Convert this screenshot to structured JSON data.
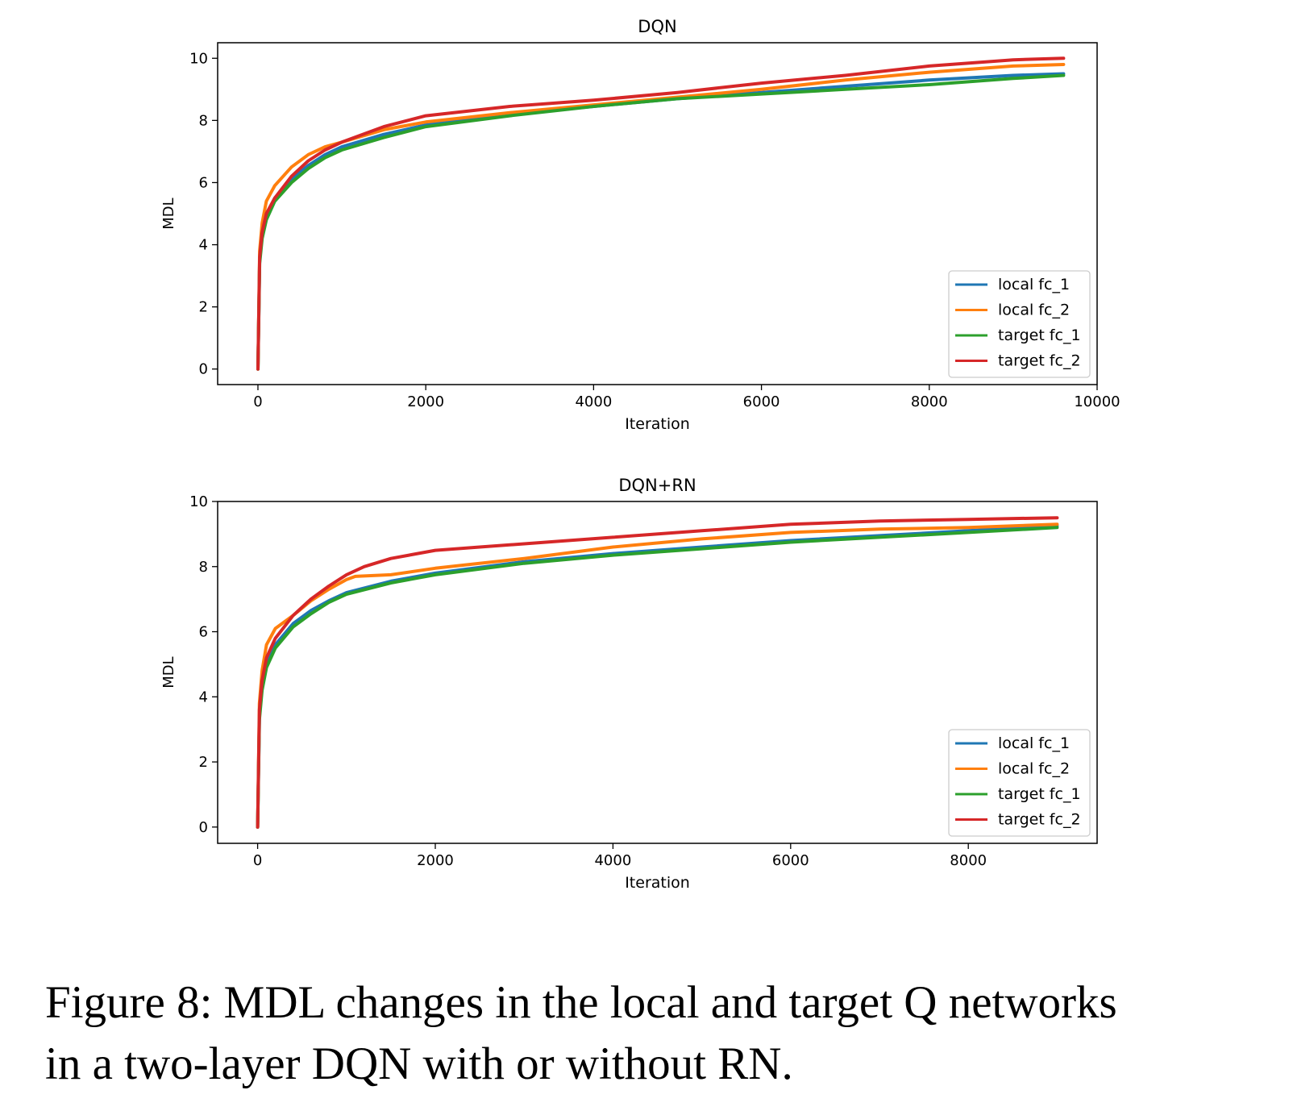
{
  "colors": {
    "local_fc_1": "#1f77b4",
    "local_fc_2": "#ff7f0e",
    "target_fc_1": "#2ca02c",
    "target_fc_2": "#d62728"
  },
  "caption": {
    "line1": "Figure 8: MDL changes in the local and target Q networks",
    "line2": "in a two-layer DQN with or without RN."
  },
  "chart_data": [
    {
      "type": "line",
      "title": "DQN",
      "xlabel": "Iteration",
      "ylabel": "MDL",
      "xlim": [
        -480,
        10000
      ],
      "ylim": [
        -0.5,
        10.5
      ],
      "xticks": [
        0,
        2000,
        4000,
        6000,
        8000,
        10000
      ],
      "yticks": [
        0,
        2,
        4,
        6,
        8,
        10
      ],
      "legend_position": "lower-right",
      "grid": false,
      "series": [
        {
          "name": "local fc_1",
          "color": "#1f77b4",
          "x": [
            0,
            20,
            50,
            100,
            200,
            400,
            600,
            800,
            1000,
            1500,
            2000,
            3000,
            4000,
            5000,
            6000,
            7000,
            8000,
            9000,
            9600
          ],
          "y": [
            0,
            3.5,
            4.3,
            4.9,
            5.5,
            6.1,
            6.55,
            6.9,
            7.15,
            7.55,
            7.85,
            8.2,
            8.45,
            8.7,
            8.9,
            9.1,
            9.3,
            9.45,
            9.5
          ]
        },
        {
          "name": "local fc_2",
          "color": "#ff7f0e",
          "x": [
            0,
            20,
            50,
            100,
            200,
            400,
            600,
            800,
            1000,
            1500,
            2000,
            3000,
            4000,
            5000,
            6000,
            7000,
            8000,
            9000,
            9600
          ],
          "y": [
            0,
            3.8,
            4.7,
            5.4,
            5.9,
            6.5,
            6.9,
            7.15,
            7.3,
            7.7,
            7.95,
            8.25,
            8.5,
            8.75,
            9.0,
            9.3,
            9.55,
            9.75,
            9.8
          ]
        },
        {
          "name": "target fc_1",
          "color": "#2ca02c",
          "x": [
            0,
            20,
            50,
            100,
            200,
            400,
            600,
            800,
            1000,
            1500,
            2000,
            3000,
            4000,
            5000,
            6000,
            7000,
            8000,
            9000,
            9600
          ],
          "y": [
            0,
            3.4,
            4.2,
            4.8,
            5.4,
            6.0,
            6.45,
            6.8,
            7.05,
            7.45,
            7.8,
            8.15,
            8.45,
            8.7,
            8.85,
            9.0,
            9.15,
            9.35,
            9.45
          ]
        },
        {
          "name": "target fc_2",
          "color": "#d62728",
          "x": [
            0,
            20,
            50,
            100,
            200,
            400,
            600,
            800,
            1000,
            1500,
            2000,
            3000,
            4000,
            5000,
            6000,
            7000,
            8000,
            9000,
            9600
          ],
          "y": [
            0,
            3.6,
            4.4,
            5.0,
            5.5,
            6.2,
            6.7,
            7.05,
            7.3,
            7.8,
            8.15,
            8.45,
            8.65,
            8.9,
            9.2,
            9.45,
            9.75,
            9.95,
            10.0
          ]
        }
      ]
    },
    {
      "type": "line",
      "title": "DQN+RN",
      "xlabel": "Iteration",
      "ylabel": "MDL",
      "xlim": [
        -450,
        9450
      ],
      "ylim": [
        -0.5,
        10.0
      ],
      "xticks": [
        0,
        2000,
        4000,
        6000,
        8000
      ],
      "yticks": [
        0,
        2,
        4,
        6,
        8,
        10
      ],
      "legend_position": "lower-right",
      "grid": false,
      "series": [
        {
          "name": "local fc_1",
          "color": "#1f77b4",
          "x": [
            0,
            20,
            50,
            100,
            200,
            400,
            600,
            800,
            1000,
            1500,
            2000,
            3000,
            4000,
            5000,
            6000,
            7000,
            8000,
            9000
          ],
          "y": [
            0,
            3.4,
            4.3,
            5.0,
            5.6,
            6.25,
            6.65,
            6.95,
            7.2,
            7.55,
            7.8,
            8.15,
            8.4,
            8.6,
            8.8,
            8.95,
            9.1,
            9.25
          ]
        },
        {
          "name": "local fc_2",
          "color": "#ff7f0e",
          "x": [
            0,
            20,
            50,
            100,
            200,
            300,
            400,
            600,
            800,
            1000,
            1100,
            1500,
            2000,
            3000,
            4000,
            5000,
            6000,
            7000,
            8000,
            9000
          ],
          "y": [
            0,
            3.8,
            4.8,
            5.6,
            6.1,
            6.3,
            6.5,
            6.95,
            7.3,
            7.6,
            7.7,
            7.75,
            7.95,
            8.25,
            8.6,
            8.85,
            9.05,
            9.15,
            9.2,
            9.3
          ]
        },
        {
          "name": "target fc_1",
          "color": "#2ca02c",
          "x": [
            0,
            20,
            50,
            100,
            200,
            400,
            600,
            800,
            1000,
            1500,
            2000,
            3000,
            4000,
            5000,
            6000,
            7000,
            8000,
            9000
          ],
          "y": [
            0,
            3.3,
            4.2,
            4.9,
            5.5,
            6.15,
            6.55,
            6.9,
            7.15,
            7.5,
            7.75,
            8.1,
            8.35,
            8.55,
            8.75,
            8.9,
            9.05,
            9.2
          ]
        },
        {
          "name": "target fc_2",
          "color": "#d62728",
          "x": [
            0,
            20,
            50,
            100,
            200,
            400,
            600,
            800,
            1000,
            1200,
            1500,
            2000,
            2500,
            3000,
            4000,
            5000,
            6000,
            7000,
            8000,
            9000
          ],
          "y": [
            0,
            3.6,
            4.5,
            5.2,
            5.8,
            6.5,
            7.0,
            7.4,
            7.75,
            8.0,
            8.25,
            8.5,
            8.6,
            8.7,
            8.9,
            9.1,
            9.3,
            9.4,
            9.45,
            9.5
          ]
        }
      ]
    }
  ]
}
